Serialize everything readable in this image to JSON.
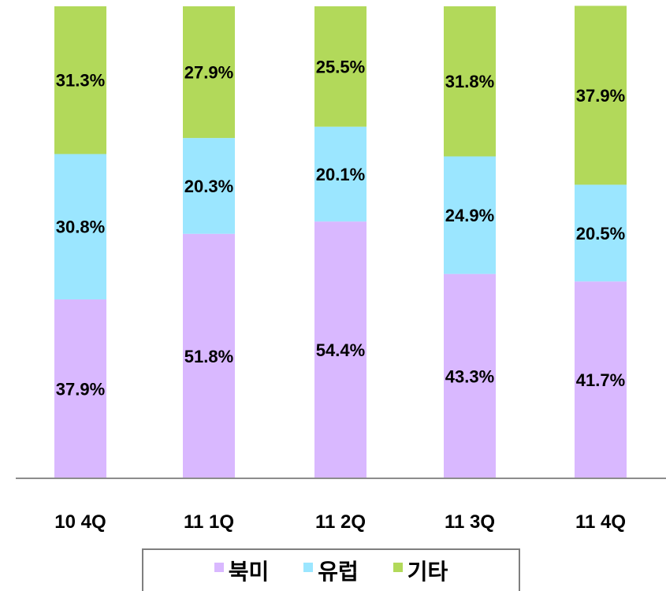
{
  "chart_data": {
    "type": "bar",
    "stacked": true,
    "categories": [
      "10 4Q",
      "11 1Q",
      "11 2Q",
      "11 3Q",
      "11 4Q"
    ],
    "series": [
      {
        "name": "북미",
        "color": "#d9b8ff",
        "values": [
          37.9,
          51.8,
          54.4,
          43.3,
          41.7
        ],
        "labels": [
          "37.9%",
          "51.8%",
          "54.4%",
          "43.3%",
          "41.7%"
        ]
      },
      {
        "name": "유럽",
        "color": "#9be6ff",
        "values": [
          30.8,
          20.3,
          20.1,
          24.9,
          20.5
        ],
        "labels": [
          "30.8%",
          "20.3%",
          "20.1%",
          "24.9%",
          "20.5%"
        ]
      },
      {
        "name": "기타",
        "color": "#b2d95a",
        "values": [
          31.3,
          27.9,
          25.5,
          31.8,
          37.9
        ],
        "labels": [
          "31.3%",
          "27.9%",
          "25.5%",
          "31.8%",
          "37.9%"
        ]
      }
    ],
    "ylim": [
      0,
      100
    ],
    "grid": false,
    "legend_position": "bottom"
  }
}
